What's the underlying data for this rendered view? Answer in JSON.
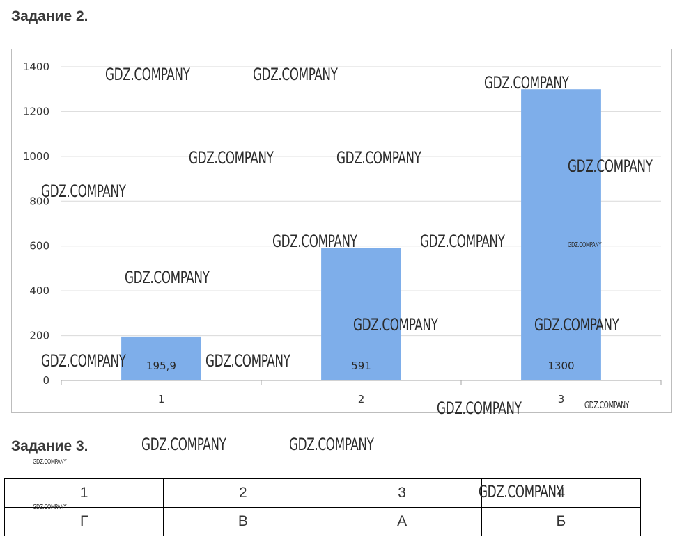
{
  "task2": {
    "heading": "Задание 2."
  },
  "task3": {
    "heading": "Задание 3.",
    "table": {
      "numbers": [
        "1",
        "2",
        "3",
        "4"
      ],
      "answers": [
        "Г",
        "В",
        "А",
        "Б"
      ]
    }
  },
  "chart_data": {
    "type": "bar",
    "categories": [
      "1",
      "2",
      "3"
    ],
    "values": [
      195.9,
      591,
      1300
    ],
    "data_labels": [
      "195,9",
      "591",
      "1300"
    ],
    "title": "",
    "xlabel": "",
    "ylabel": "",
    "ylim": [
      0,
      1400
    ],
    "yticks": [
      "0",
      "200",
      "400",
      "600",
      "800",
      "1000",
      "1200",
      "1400"
    ],
    "grid": true,
    "legend": "none",
    "bar_color": "#7eaeea"
  },
  "watermark": {
    "text": "GDZ.COMPANY"
  }
}
